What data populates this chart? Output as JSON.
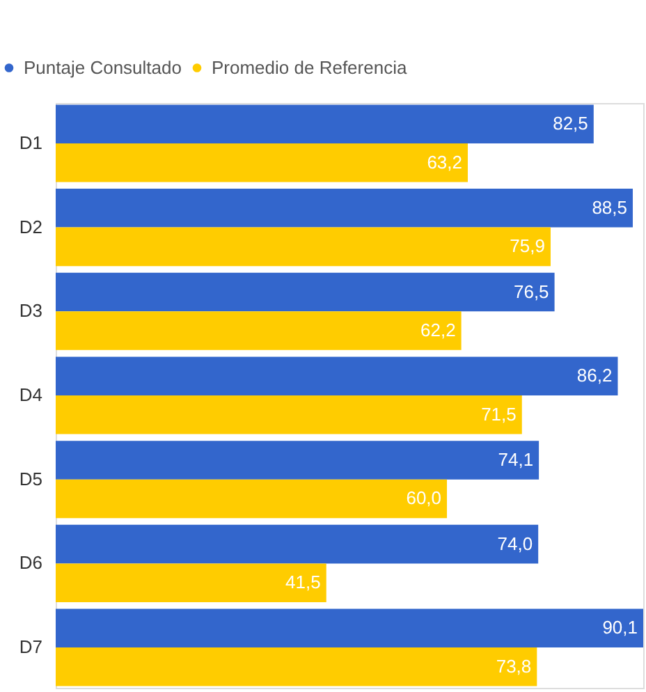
{
  "chart_data": {
    "type": "bar",
    "orientation": "horizontal",
    "categories": [
      "D1",
      "D2",
      "D3",
      "D4",
      "D5",
      "D6",
      "D7"
    ],
    "xlim": [
      0,
      90.1
    ],
    "legend": "top left",
    "grid": false,
    "series": [
      {
        "name": "Puntaje Consultado",
        "color": "#3366cc",
        "values": [
          82.5,
          88.5,
          76.5,
          86.2,
          74.1,
          74.0,
          90.1
        ],
        "value_labels": [
          "82,5",
          "88,5",
          "76,5",
          "86,2",
          "74,1",
          "74,0",
          "90,1"
        ]
      },
      {
        "name": "Promedio de Referencia",
        "color": "#ffcc00",
        "values": [
          63.2,
          75.9,
          62.2,
          71.5,
          60.0,
          41.5,
          73.8
        ],
        "value_labels": [
          "63,2",
          "75,9",
          "62,2",
          "71,5",
          "60,0",
          "41,5",
          "73,8"
        ]
      }
    ]
  }
}
